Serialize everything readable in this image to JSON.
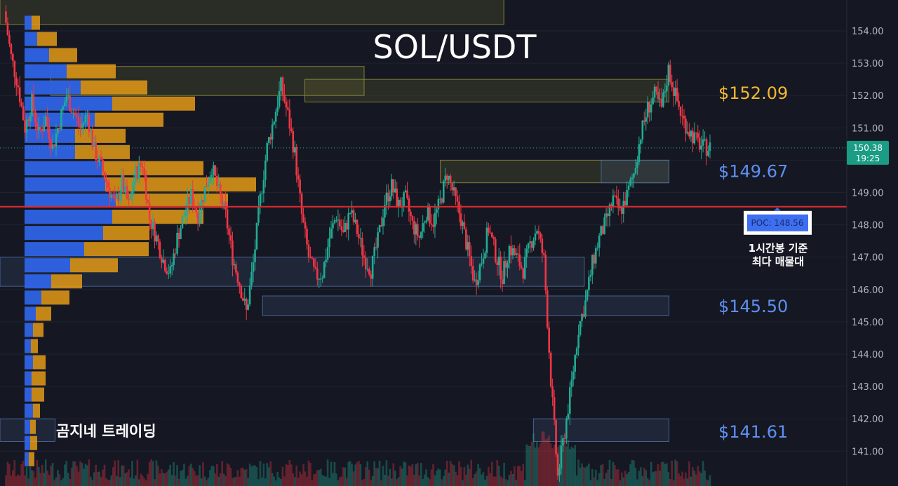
{
  "chart_data": {
    "type": "candlestick",
    "title": "SOL/USDT",
    "watermark": "곰지네 트레이딩",
    "ylim": [
      140.0,
      155.0
    ],
    "yticks": [
      "141.00",
      "142.00",
      "143.00",
      "144.00",
      "145.00",
      "146.00",
      "147.00",
      "148.00",
      "149.00",
      "150.00",
      "151.00",
      "152.00",
      "153.00",
      "154.00"
    ],
    "current_price": {
      "value": 150.38,
      "label": "150.38",
      "countdown": "19:25"
    },
    "poc": {
      "value": 148.56,
      "label": "POC: 148.56",
      "note_line1": "1시간봉 기준",
      "note_line2": "최다 매물대"
    },
    "levels": [
      {
        "price": 152.09,
        "label": "$152.09",
        "color": "#f5b731"
      },
      {
        "price": 149.67,
        "label": "$149.67",
        "color": "#5f8ff0"
      },
      {
        "price": 145.5,
        "label": "$145.50",
        "color": "#5f8ff0"
      },
      {
        "price": 141.61,
        "label": "$141.61",
        "color": "#5f8ff0"
      }
    ],
    "zones": [
      {
        "x0": 0.0,
        "x1": 0.595,
        "y_low": 154.2,
        "y_high": 155.0,
        "color": "#8a8a3a"
      },
      {
        "x0": 0.06,
        "x1": 0.43,
        "y_low": 152.0,
        "y_high": 152.9,
        "color": "#8a8a3a"
      },
      {
        "x0": 0.36,
        "x1": 0.79,
        "y_low": 151.8,
        "y_high": 152.5,
        "color": "#8a8a3a"
      },
      {
        "x0": 0.52,
        "x1": 0.79,
        "y_low": 149.3,
        "y_high": 150.0,
        "color": "#8a8a3a"
      },
      {
        "x0": 0.71,
        "x1": 0.79,
        "y_low": 149.3,
        "y_high": 150.0,
        "color": "#4a6a9a"
      },
      {
        "x0": 0.0,
        "x1": 0.69,
        "y_low": 146.1,
        "y_high": 147.0,
        "color": "#4a6a9a"
      },
      {
        "x0": 0.31,
        "x1": 0.79,
        "y_low": 145.2,
        "y_high": 145.8,
        "color": "#4a6a9a"
      },
      {
        "x0": 0.63,
        "x1": 0.79,
        "y_low": 141.3,
        "y_high": 142.0,
        "color": "#4a6a9a"
      },
      {
        "x0": 0.0,
        "x1": 0.065,
        "y_low": 141.3,
        "y_high": 142.0,
        "color": "#4a6a9a"
      }
    ],
    "volume_profile": [
      {
        "price": 154.0,
        "buy": 10,
        "sell": 12
      },
      {
        "price": 153.5,
        "buy": 18,
        "sell": 28
      },
      {
        "price": 153.0,
        "buy": 35,
        "sell": 40
      },
      {
        "price": 152.5,
        "buy": 60,
        "sell": 70
      },
      {
        "price": 152.0,
        "buy": 80,
        "sell": 95
      },
      {
        "price": 151.5,
        "buy": 125,
        "sell": 118
      },
      {
        "price": 151.0,
        "buy": 100,
        "sell": 98
      },
      {
        "price": 150.5,
        "buy": 72,
        "sell": 72
      },
      {
        "price": 150.0,
        "buy": 72,
        "sell": 78
      },
      {
        "price": 149.5,
        "buy": 110,
        "sell": 145
      },
      {
        "price": 149.0,
        "buy": 115,
        "sell": 215
      },
      {
        "price": 148.5,
        "buy": 130,
        "sell": 160
      },
      {
        "price": 148.0,
        "buy": 125,
        "sell": 130
      },
      {
        "price": 147.5,
        "buy": 112,
        "sell": 66
      },
      {
        "price": 147.0,
        "buy": 85,
        "sell": 92
      },
      {
        "price": 146.5,
        "buy": 65,
        "sell": 68
      },
      {
        "price": 146.0,
        "buy": 38,
        "sell": 44
      },
      {
        "price": 145.5,
        "buy": 24,
        "sell": 40
      },
      {
        "price": 145.0,
        "buy": 16,
        "sell": 22
      },
      {
        "price": 144.5,
        "buy": 12,
        "sell": 15
      },
      {
        "price": 144.0,
        "buy": 9,
        "sell": 10
      },
      {
        "price": 143.5,
        "buy": 12,
        "sell": 18
      },
      {
        "price": 143.0,
        "buy": 10,
        "sell": 20
      },
      {
        "price": 142.5,
        "buy": 10,
        "sell": 18
      },
      {
        "price": 142.0,
        "buy": 12,
        "sell": 10
      },
      {
        "price": 141.5,
        "buy": 8,
        "sell": 8
      },
      {
        "price": 141.0,
        "buy": 8,
        "sell": 10
      },
      {
        "price": 140.5,
        "buy": 6,
        "sell": 8
      }
    ],
    "path": [
      [
        0,
        154.6
      ],
      [
        4,
        153.2
      ],
      [
        8,
        152.3
      ],
      [
        12,
        151.0
      ],
      [
        16,
        151.8
      ],
      [
        20,
        150.8
      ],
      [
        24,
        151.3
      ],
      [
        28,
        150.4
      ],
      [
        32,
        151.2
      ],
      [
        36,
        152.0
      ],
      [
        40,
        151.5
      ],
      [
        44,
        151.0
      ],
      [
        48,
        151.4
      ],
      [
        52,
        150.3
      ],
      [
        56,
        149.8
      ],
      [
        60,
        149.2
      ],
      [
        64,
        148.6
      ],
      [
        68,
        149.3
      ],
      [
        72,
        148.6
      ],
      [
        76,
        149.6
      ],
      [
        80,
        149.9
      ],
      [
        84,
        148.2
      ],
      [
        88,
        147.6
      ],
      [
        92,
        146.9
      ],
      [
        96,
        146.5
      ],
      [
        100,
        147.6
      ],
      [
        104,
        148.3
      ],
      [
        108,
        148.9
      ],
      [
        112,
        148.3
      ],
      [
        116,
        149.1
      ],
      [
        120,
        149.8
      ],
      [
        124,
        149.0
      ],
      [
        128,
        148.3
      ],
      [
        132,
        147.0
      ],
      [
        136,
        146.2
      ],
      [
        140,
        145.3
      ],
      [
        144,
        146.8
      ],
      [
        148,
        148.8
      ],
      [
        152,
        150.4
      ],
      [
        156,
        151.3
      ],
      [
        160,
        152.3
      ],
      [
        164,
        151.4
      ],
      [
        168,
        150.2
      ],
      [
        172,
        148.3
      ],
      [
        176,
        147.0
      ],
      [
        180,
        146.4
      ],
      [
        184,
        146.5
      ],
      [
        188,
        147.6
      ],
      [
        192,
        148.3
      ],
      [
        196,
        147.7
      ],
      [
        200,
        148.4
      ],
      [
        204,
        147.8
      ],
      [
        208,
        147.0
      ],
      [
        212,
        146.6
      ],
      [
        216,
        147.5
      ],
      [
        220,
        148.7
      ],
      [
        224,
        149.2
      ],
      [
        228,
        148.6
      ],
      [
        232,
        148.8
      ],
      [
        236,
        148.0
      ],
      [
        240,
        147.6
      ],
      [
        244,
        148.4
      ],
      [
        248,
        148.1
      ],
      [
        252,
        148.7
      ],
      [
        256,
        149.6
      ],
      [
        260,
        148.9
      ],
      [
        264,
        148.2
      ],
      [
        268,
        147.2
      ],
      [
        272,
        146.2
      ],
      [
        276,
        146.9
      ],
      [
        280,
        147.9
      ],
      [
        284,
        147.1
      ],
      [
        288,
        146.4
      ],
      [
        292,
        147.3
      ],
      [
        296,
        147.0
      ],
      [
        300,
        146.6
      ],
      [
        304,
        147.4
      ],
      [
        308,
        147.9
      ],
      [
        312,
        146.9
      ],
      [
        316,
        143.2
      ],
      [
        320,
        140.2
      ],
      [
        324,
        141.6
      ],
      [
        328,
        143.1
      ],
      [
        332,
        144.8
      ],
      [
        336,
        145.6
      ],
      [
        340,
        146.8
      ],
      [
        344,
        147.6
      ],
      [
        348,
        148.1
      ],
      [
        352,
        148.8
      ],
      [
        356,
        148.4
      ],
      [
        360,
        148.9
      ],
      [
        364,
        149.6
      ],
      [
        368,
        150.8
      ],
      [
        372,
        151.6
      ],
      [
        376,
        152.0
      ],
      [
        380,
        151.6
      ],
      [
        384,
        152.8
      ],
      [
        388,
        152.0
      ],
      [
        392,
        151.3
      ],
      [
        396,
        150.9
      ],
      [
        400,
        150.6
      ],
      [
        404,
        150.4
      ],
      [
        408,
        150.38
      ]
    ]
  }
}
